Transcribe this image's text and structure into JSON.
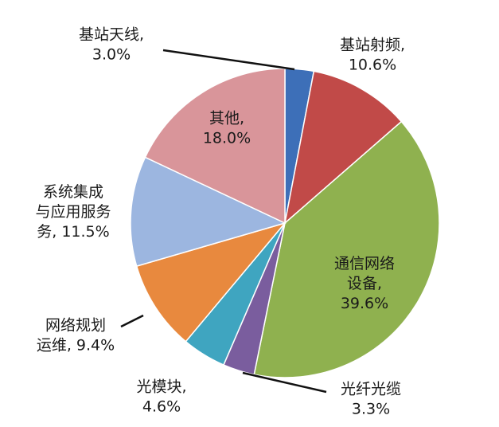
{
  "chart_data": {
    "type": "pie",
    "title": "",
    "start_angle_deg": 0,
    "direction": "clockwise",
    "legend": "none",
    "slices": [
      {
        "label": "基站天线",
        "value": 3.0,
        "display": "3.0%",
        "color": "#3d6fb8"
      },
      {
        "label": "基站射频",
        "value": 10.6,
        "display": "10.6%",
        "color": "#c14a48"
      },
      {
        "label": "通信网络设备",
        "value": 39.6,
        "display": "39.6%",
        "color": "#8fb14f"
      },
      {
        "label": "光纤光缆",
        "value": 3.3,
        "display": "3.3%",
        "color": "#7a5d9e"
      },
      {
        "label": "光模块",
        "value": 4.6,
        "display": "4.6%",
        "color": "#3fa5c0"
      },
      {
        "label": "网络规划运维",
        "value": 9.4,
        "display": "9.4%",
        "color": "#e8893e"
      },
      {
        "label": "系统集成与应用服务",
        "value": 11.5,
        "display": "11.5%",
        "color": "#9cb6e0"
      },
      {
        "label": "其他",
        "value": 18.0,
        "display": "18.0%",
        "color": "#d9959a"
      }
    ],
    "label_lines": [
      [
        "基站天线,",
        "3.0%"
      ],
      [
        "基站射频,",
        "10.6%"
      ],
      [
        "通信网络",
        "设备,",
        "39.6%"
      ],
      [
        "光纤光缆",
        "3.3%"
      ],
      [
        "光模块,",
        "4.6%"
      ],
      [
        "网络规划",
        "运维, 9.4%"
      ],
      [
        "系统集成",
        "与应用服务",
        "务, 11.5%"
      ],
      [
        "其他,",
        "18.0%"
      ]
    ]
  }
}
